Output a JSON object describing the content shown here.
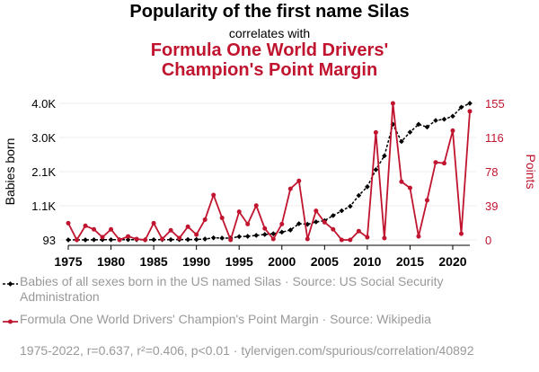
{
  "chart_data": {
    "type": "line",
    "title": "Popularity of the first name Silas",
    "subtitle": "correlates with",
    "title2": "Formula One World Drivers' Champion's Point Margin",
    "x": [
      1975,
      1976,
      1977,
      1978,
      1979,
      1980,
      1981,
      1982,
      1983,
      1984,
      1985,
      1986,
      1987,
      1988,
      1989,
      1990,
      1991,
      1992,
      1993,
      1994,
      1995,
      1996,
      1997,
      1998,
      1999,
      2000,
      2001,
      2002,
      2003,
      2004,
      2005,
      2006,
      2007,
      2008,
      2009,
      2010,
      2011,
      2012,
      2013,
      2014,
      2015,
      2016,
      2017,
      2018,
      2019,
      2020,
      2021,
      2022
    ],
    "xticks": [
      "1975",
      "1980",
      "1985",
      "1990",
      "1995",
      "2000",
      "2005",
      "2010",
      "2015",
      "2020"
    ],
    "xlim": [
      1975,
      2022
    ],
    "left_axis": {
      "label": "Babies born",
      "ticks": [
        "93",
        "1.1K",
        "2.1K",
        "3.0K",
        "4.0K"
      ],
      "tick_values": [
        93,
        1070,
        2047,
        3023,
        4000
      ],
      "ylim": [
        93,
        4000
      ]
    },
    "right_axis": {
      "label": "Points",
      "ticks": [
        "0",
        "39",
        "78",
        "116",
        "155"
      ],
      "tick_values": [
        0,
        38.75,
        77.5,
        116.25,
        155
      ],
      "ylim": [
        0,
        155
      ]
    },
    "series": [
      {
        "name": "Babies of all sexes born in the US named Silas · Source: US Social Security Administration",
        "axis": "left",
        "color": "#000000",
        "values": [
          93,
          95,
          93,
          97,
          98,
          99,
          100,
          101,
          98,
          96,
          99,
          100,
          101,
          102,
          103,
          105,
          119,
          153,
          145,
          145,
          187,
          196,
          222,
          248,
          270,
          316,
          376,
          557,
          540,
          608,
          643,
          789,
          926,
          1055,
          1364,
          1613,
          2102,
          2497,
          3399,
          2909,
          3175,
          3399,
          3322,
          3510,
          3545,
          3631,
          3888,
          4000
        ]
      },
      {
        "name": "Formula One World Drivers' Champion's Point Margin · Source: Wikipedia",
        "axis": "right",
        "color": "#c0142f",
        "values": [
          19,
          0,
          16,
          12,
          3,
          12,
          0,
          4,
          1,
          0,
          19,
          1,
          11,
          2,
          15,
          6,
          23,
          51,
          25,
          0,
          32,
          18,
          39,
          13,
          1,
          18,
          58,
          67,
          1,
          33,
          20,
          12,
          0,
          0,
          10,
          3,
          122,
          2,
          155,
          66,
          59,
          4,
          45,
          88,
          87,
          124,
          7,
          146
        ]
      }
    ],
    "grid": true
  },
  "footer": "1975-2022, r=0.637, r²=0.406, p<0.01 · tylervigen.com/spurious/correlation/40892"
}
